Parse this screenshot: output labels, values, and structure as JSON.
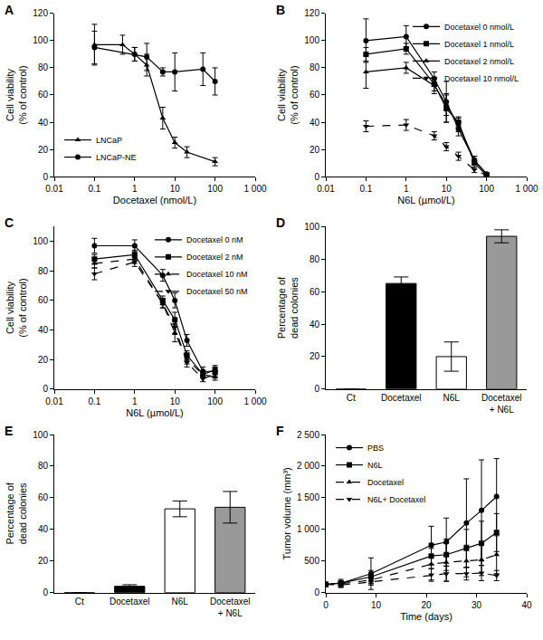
{
  "chart_data": [
    {
      "type": "line",
      "title": "A",
      "log": "x",
      "legend": "lower left",
      "x_label": "Docetaxel (nmol/L)",
      "y_label": "Cell viability\n(% of control)",
      "xlim": [
        0.01,
        1000
      ],
      "xticks": [
        0.01,
        0.1,
        1,
        10,
        100,
        {
          "value": 1000,
          "label": "1 000"
        }
      ],
      "ylim": [
        0,
        120
      ],
      "yticks": [
        0,
        20,
        40,
        60,
        80,
        100,
        120
      ],
      "series": [
        {
          "name": "LNCaP",
          "color": "#000000",
          "marker": "triangle-up",
          "line_style": "solid",
          "x": [
            0.1,
            0.5,
            1,
            2,
            5,
            10,
            20,
            100
          ],
          "values": [
            97,
            97,
            90,
            82,
            43,
            25,
            18,
            11
          ],
          "errors": [
            15,
            7,
            5,
            8,
            8,
            4,
            4,
            3
          ]
        },
        {
          "name": "LNCaP-NE",
          "color": "#000000",
          "marker": "circle",
          "line_style": "solid",
          "x": [
            0.1,
            1,
            2,
            5,
            10,
            50,
            100
          ],
          "values": [
            95,
            90,
            88,
            77,
            77,
            79,
            70
          ],
          "errors": [
            12,
            5,
            10,
            3,
            14,
            12,
            10
          ]
        }
      ]
    },
    {
      "type": "line",
      "title": "B",
      "log": "x",
      "legend": "upper right",
      "x_label": "N6L (µmol/L)",
      "y_label": "Cell viability\n(% of control)",
      "xlim": [
        0.01,
        1000
      ],
      "xticks": [
        0.01,
        0.1,
        1,
        10,
        100,
        {
          "value": 1000,
          "label": "1 000"
        }
      ],
      "ylim": [
        0,
        120
      ],
      "yticks": [
        0,
        20,
        40,
        60,
        80,
        100,
        120
      ],
      "x": [
        0.1,
        1,
        5,
        10,
        20,
        50,
        100
      ],
      "series": [
        {
          "name": "Docetaxel 0 nmol/L",
          "color": "#000000",
          "marker": "circle",
          "line_style": "solid",
          "values": [
            100,
            103,
            72,
            55,
            35,
            12,
            2
          ],
          "errors": [
            16,
            8,
            5,
            15,
            5,
            3,
            1
          ]
        },
        {
          "name": "Docetaxel 1 nmol/L",
          "color": "#000000",
          "marker": "square",
          "line_style": "solid",
          "values": [
            90,
            94,
            68,
            50,
            40,
            10,
            1
          ],
          "errors": [
            5,
            4,
            5,
            10,
            4,
            3,
            1
          ]
        },
        {
          "name": "Docetaxel 2 nmol/L",
          "color": "#000000",
          "marker": "triangle-up",
          "line_style": "solid",
          "values": [
            77,
            80,
            67,
            53,
            38,
            12,
            2
          ],
          "errors": [
            12,
            4,
            6,
            8,
            5,
            3,
            1
          ]
        },
        {
          "name": "Docetaxel 10 nmol/L",
          "color": "#000000",
          "marker": "triangle-down",
          "line_style": "dash",
          "values": [
            37,
            38,
            30,
            22,
            15,
            5,
            1
          ],
          "errors": [
            4,
            4,
            3,
            3,
            3,
            2,
            1
          ]
        }
      ]
    },
    {
      "type": "line",
      "title": "C",
      "log": "x",
      "legend": "upper right",
      "x_label": "N6L (µmol/L)",
      "y_label": "Cell viability\n(% of control)",
      "xlim": [
        0.01,
        1000
      ],
      "xticks": [
        0.01,
        0.1,
        1,
        10,
        100,
        {
          "value": 1000,
          "label": "1 000"
        }
      ],
      "ylim": [
        0,
        110
      ],
      "yticks": [
        0,
        20,
        40,
        60,
        80,
        100
      ],
      "x": [
        0.1,
        1,
        5,
        10,
        20,
        50,
        100
      ],
      "series": [
        {
          "name": "Docetaxel 0 nM",
          "color": "#000000",
          "marker": "circle",
          "line_style": "solid",
          "values": [
            97,
            97,
            77,
            60,
            33,
            12,
            12
          ],
          "errors": [
            5,
            4,
            4,
            5,
            4,
            3,
            3
          ]
        },
        {
          "name": "Docetaxel 2 nM",
          "color": "#000000",
          "marker": "square",
          "line_style": "solid",
          "values": [
            88,
            91,
            60,
            47,
            23,
            10,
            13
          ],
          "errors": [
            3,
            3,
            3,
            5,
            3,
            2,
            3
          ]
        },
        {
          "name": "Docetaxel 10 nM",
          "color": "#000000",
          "marker": "triangle-up",
          "line_style": "dash",
          "values": [
            85,
            88,
            58,
            38,
            20,
            10,
            8
          ],
          "errors": [
            3,
            3,
            3,
            6,
            3,
            2,
            2
          ]
        },
        {
          "name": "Docetaxel 50 nM",
          "color": "#000000",
          "marker": "triangle-down",
          "line_style": "dash",
          "values": [
            78,
            86,
            58,
            42,
            18,
            7,
            10
          ],
          "errors": [
            4,
            3,
            3,
            5,
            3,
            2,
            2
          ]
        }
      ]
    },
    {
      "type": "bar",
      "title": "D",
      "y_label": "Percentage of\ndead colonies",
      "categories": [
        "Ct",
        "Docetaxel",
        "N6L",
        "Docetaxel\n+ N6L"
      ],
      "values": [
        0,
        65,
        20,
        94
      ],
      "errors": [
        0,
        4,
        9,
        4
      ],
      "colors": [
        "#000000",
        "#000000",
        "#ffffff",
        "#999999"
      ],
      "ylim": [
        0,
        100
      ],
      "yticks": [
        0,
        20,
        40,
        60,
        80,
        100
      ]
    },
    {
      "type": "bar",
      "title": "E",
      "y_label": "Percentage of\ndead colonies",
      "categories": [
        "Ct",
        "Docetaxel",
        "N6L",
        "Docetaxel\n+ N6L"
      ],
      "values": [
        0,
        4,
        53,
        54
      ],
      "errors": [
        0,
        1,
        5,
        10
      ],
      "colors": [
        "#000000",
        "#000000",
        "#ffffff",
        "#999999"
      ],
      "ylim": [
        0,
        100
      ],
      "yticks": [
        0,
        20,
        40,
        60,
        80,
        100
      ]
    },
    {
      "type": "line",
      "title": "F",
      "legend": "upper left",
      "x_label": "Time (days)",
      "y_label": "Tumor volume (mm³)",
      "xlim": [
        0,
        40
      ],
      "xticks": [
        0,
        10,
        20,
        30,
        40
      ],
      "ylim": [
        0,
        2500
      ],
      "yticks": [
        0,
        500,
        {
          "value": 1000,
          "label": "1 000"
        },
        {
          "value": 1500,
          "label": "1 500"
        },
        {
          "value": 2000,
          "label": "2 000"
        },
        {
          "value": 2500,
          "label": "2 500"
        }
      ],
      "x": [
        0,
        3,
        9,
        21,
        24,
        28,
        31,
        34
      ],
      "series": [
        {
          "name": "PBS",
          "color": "#000000",
          "marker": "circle",
          "line_style": "solid",
          "values": [
            130,
            150,
            300,
            750,
            800,
            1100,
            1300,
            1520
          ],
          "errors": [
            30,
            60,
            250,
            300,
            380,
            700,
            800,
            600
          ]
        },
        {
          "name": "N6L",
          "color": "#000000",
          "marker": "square",
          "line_style": "solid",
          "values": [
            130,
            150,
            250,
            580,
            600,
            700,
            780,
            950
          ],
          "errors": [
            30,
            40,
            100,
            200,
            250,
            300,
            350,
            300
          ]
        },
        {
          "name": "Docetaxel",
          "color": "#000000",
          "marker": "triangle-up",
          "line_style": "dash",
          "values": [
            130,
            140,
            200,
            450,
            480,
            500,
            520,
            600
          ],
          "errors": [
            30,
            30,
            60,
            250,
            300,
            250,
            250,
            300
          ]
        },
        {
          "name": "N6L+ Docetaxel",
          "color": "#000000",
          "marker": "triangle-down",
          "line_style": "dash",
          "values": [
            130,
            120,
            170,
            280,
            300,
            300,
            310,
            270
          ],
          "errors": [
            30,
            40,
            50,
            100,
            120,
            100,
            120,
            80
          ]
        }
      ]
    }
  ]
}
